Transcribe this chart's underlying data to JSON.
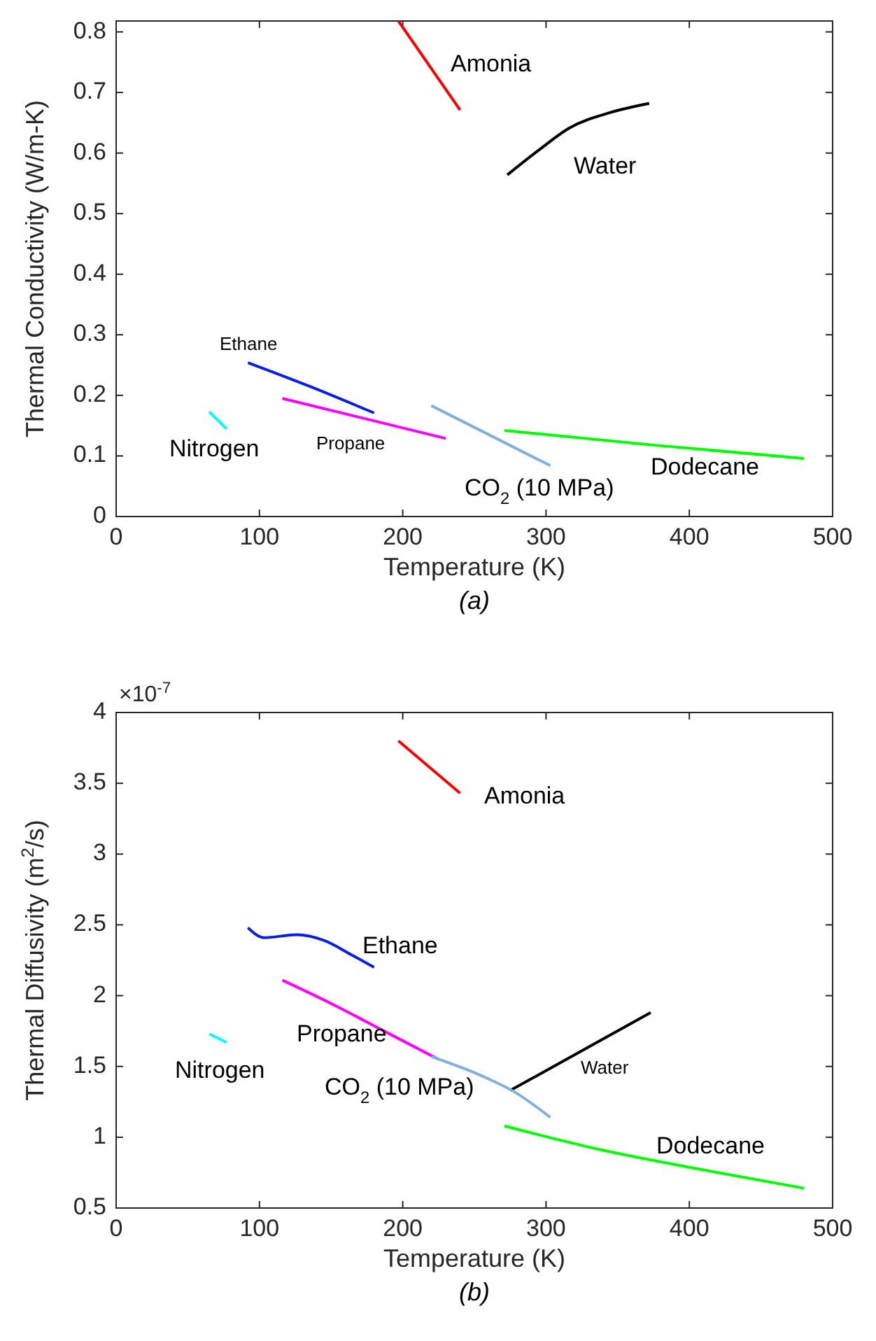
{
  "chart_data": [
    {
      "type": "line",
      "xlabel": "Temperature (K)",
      "ylabel": "Thermal Conductivity (W/m-K)",
      "xlim": [
        0,
        500
      ],
      "ylim": [
        0,
        0.818
      ],
      "xticks": [
        0,
        100,
        200,
        300,
        400,
        500
      ],
      "yticks": [
        0,
        0.1,
        0.2,
        0.3,
        0.4,
        0.5,
        0.6,
        0.7,
        0.8
      ],
      "grid": false,
      "legend": false,
      "marker": "none",
      "line_style": "solid",
      "annotations": [
        "(a)"
      ],
      "series": [
        {
          "name": "Amonia",
          "color": "#ff0000",
          "x": [
            197,
            240
          ],
          "values": [
            0.818,
            0.671
          ]
        },
        {
          "name": "Water",
          "color": "#000000",
          "x": [
            273,
            295,
            316,
            345,
            372
          ],
          "values": [
            0.564,
            0.605,
            0.641,
            0.667,
            0.682
          ]
        },
        {
          "name": "Ethane",
          "color": "#0a1ee6",
          "x": [
            92,
            135,
            180
          ],
          "values": [
            0.254,
            0.215,
            0.171
          ]
        },
        {
          "name": "Propane",
          "color": "#ff00ff",
          "x": [
            116,
            230
          ],
          "values": [
            0.195,
            0.129
          ]
        },
        {
          "name": "Nitrogen",
          "color": "#00ffff",
          "x": [
            65,
            77
          ],
          "values": [
            0.173,
            0.145
          ]
        },
        {
          "name": "CO$_{2}$ (10 MPa)",
          "color": "#7fb0e0",
          "x": [
            220,
            303
          ],
          "values": [
            0.183,
            0.084
          ]
        },
        {
          "name": "Dodecane",
          "color": "#00ff00",
          "x": [
            271,
            375,
            480
          ],
          "values": [
            0.142,
            0.118,
            0.096
          ]
        }
      ]
    },
    {
      "type": "line",
      "xlabel": "Temperature (K)",
      "ylabel": "Thermal Diffusivity (m$^{2}$/s)",
      "xlim": [
        0,
        500
      ],
      "ylim": [
        0.5,
        4
      ],
      "xticks": [
        0,
        100,
        200,
        300,
        400,
        500
      ],
      "yticks": [
        0.5,
        1,
        1.5,
        2,
        2.5,
        3,
        3.5,
        4
      ],
      "grid": false,
      "legend": false,
      "marker": "none",
      "line_style": "solid",
      "annotations": [
        "×10$^{-7}$",
        "(b)"
      ],
      "series": [
        {
          "name": "Amonia",
          "color": "#ff0000",
          "x": [
            197,
            240
          ],
          "values": [
            3.8,
            3.43
          ]
        },
        {
          "name": "Water",
          "color": "#000000",
          "x": [
            275,
            373
          ],
          "values": [
            1.33,
            1.88
          ]
        },
        {
          "name": "Ethane",
          "color": "#0a1ee6",
          "x": [
            92,
            103,
            126,
            145,
            164,
            180
          ],
          "values": [
            2.48,
            2.41,
            2.43,
            2.39,
            2.29,
            2.2
          ]
        },
        {
          "name": "Propane",
          "color": "#ff00ff",
          "x": [
            116,
            149,
            187,
            225
          ],
          "values": [
            2.11,
            1.95,
            1.75,
            1.55
          ]
        },
        {
          "name": "Nitrogen",
          "color": "#00ffff",
          "x": [
            65,
            77
          ],
          "values": [
            1.73,
            1.67
          ]
        },
        {
          "name": "CO$_{2}$ (10 MPa)",
          "color": "#7fb0e0",
          "x": [
            220,
            256,
            278,
            303
          ],
          "values": [
            1.57,
            1.43,
            1.32,
            1.14
          ]
        },
        {
          "name": "Dodecane",
          "color": "#00ff00",
          "x": [
            271,
            339,
            415,
            480
          ],
          "values": [
            1.08,
            0.91,
            0.76,
            0.64
          ]
        }
      ]
    }
  ]
}
